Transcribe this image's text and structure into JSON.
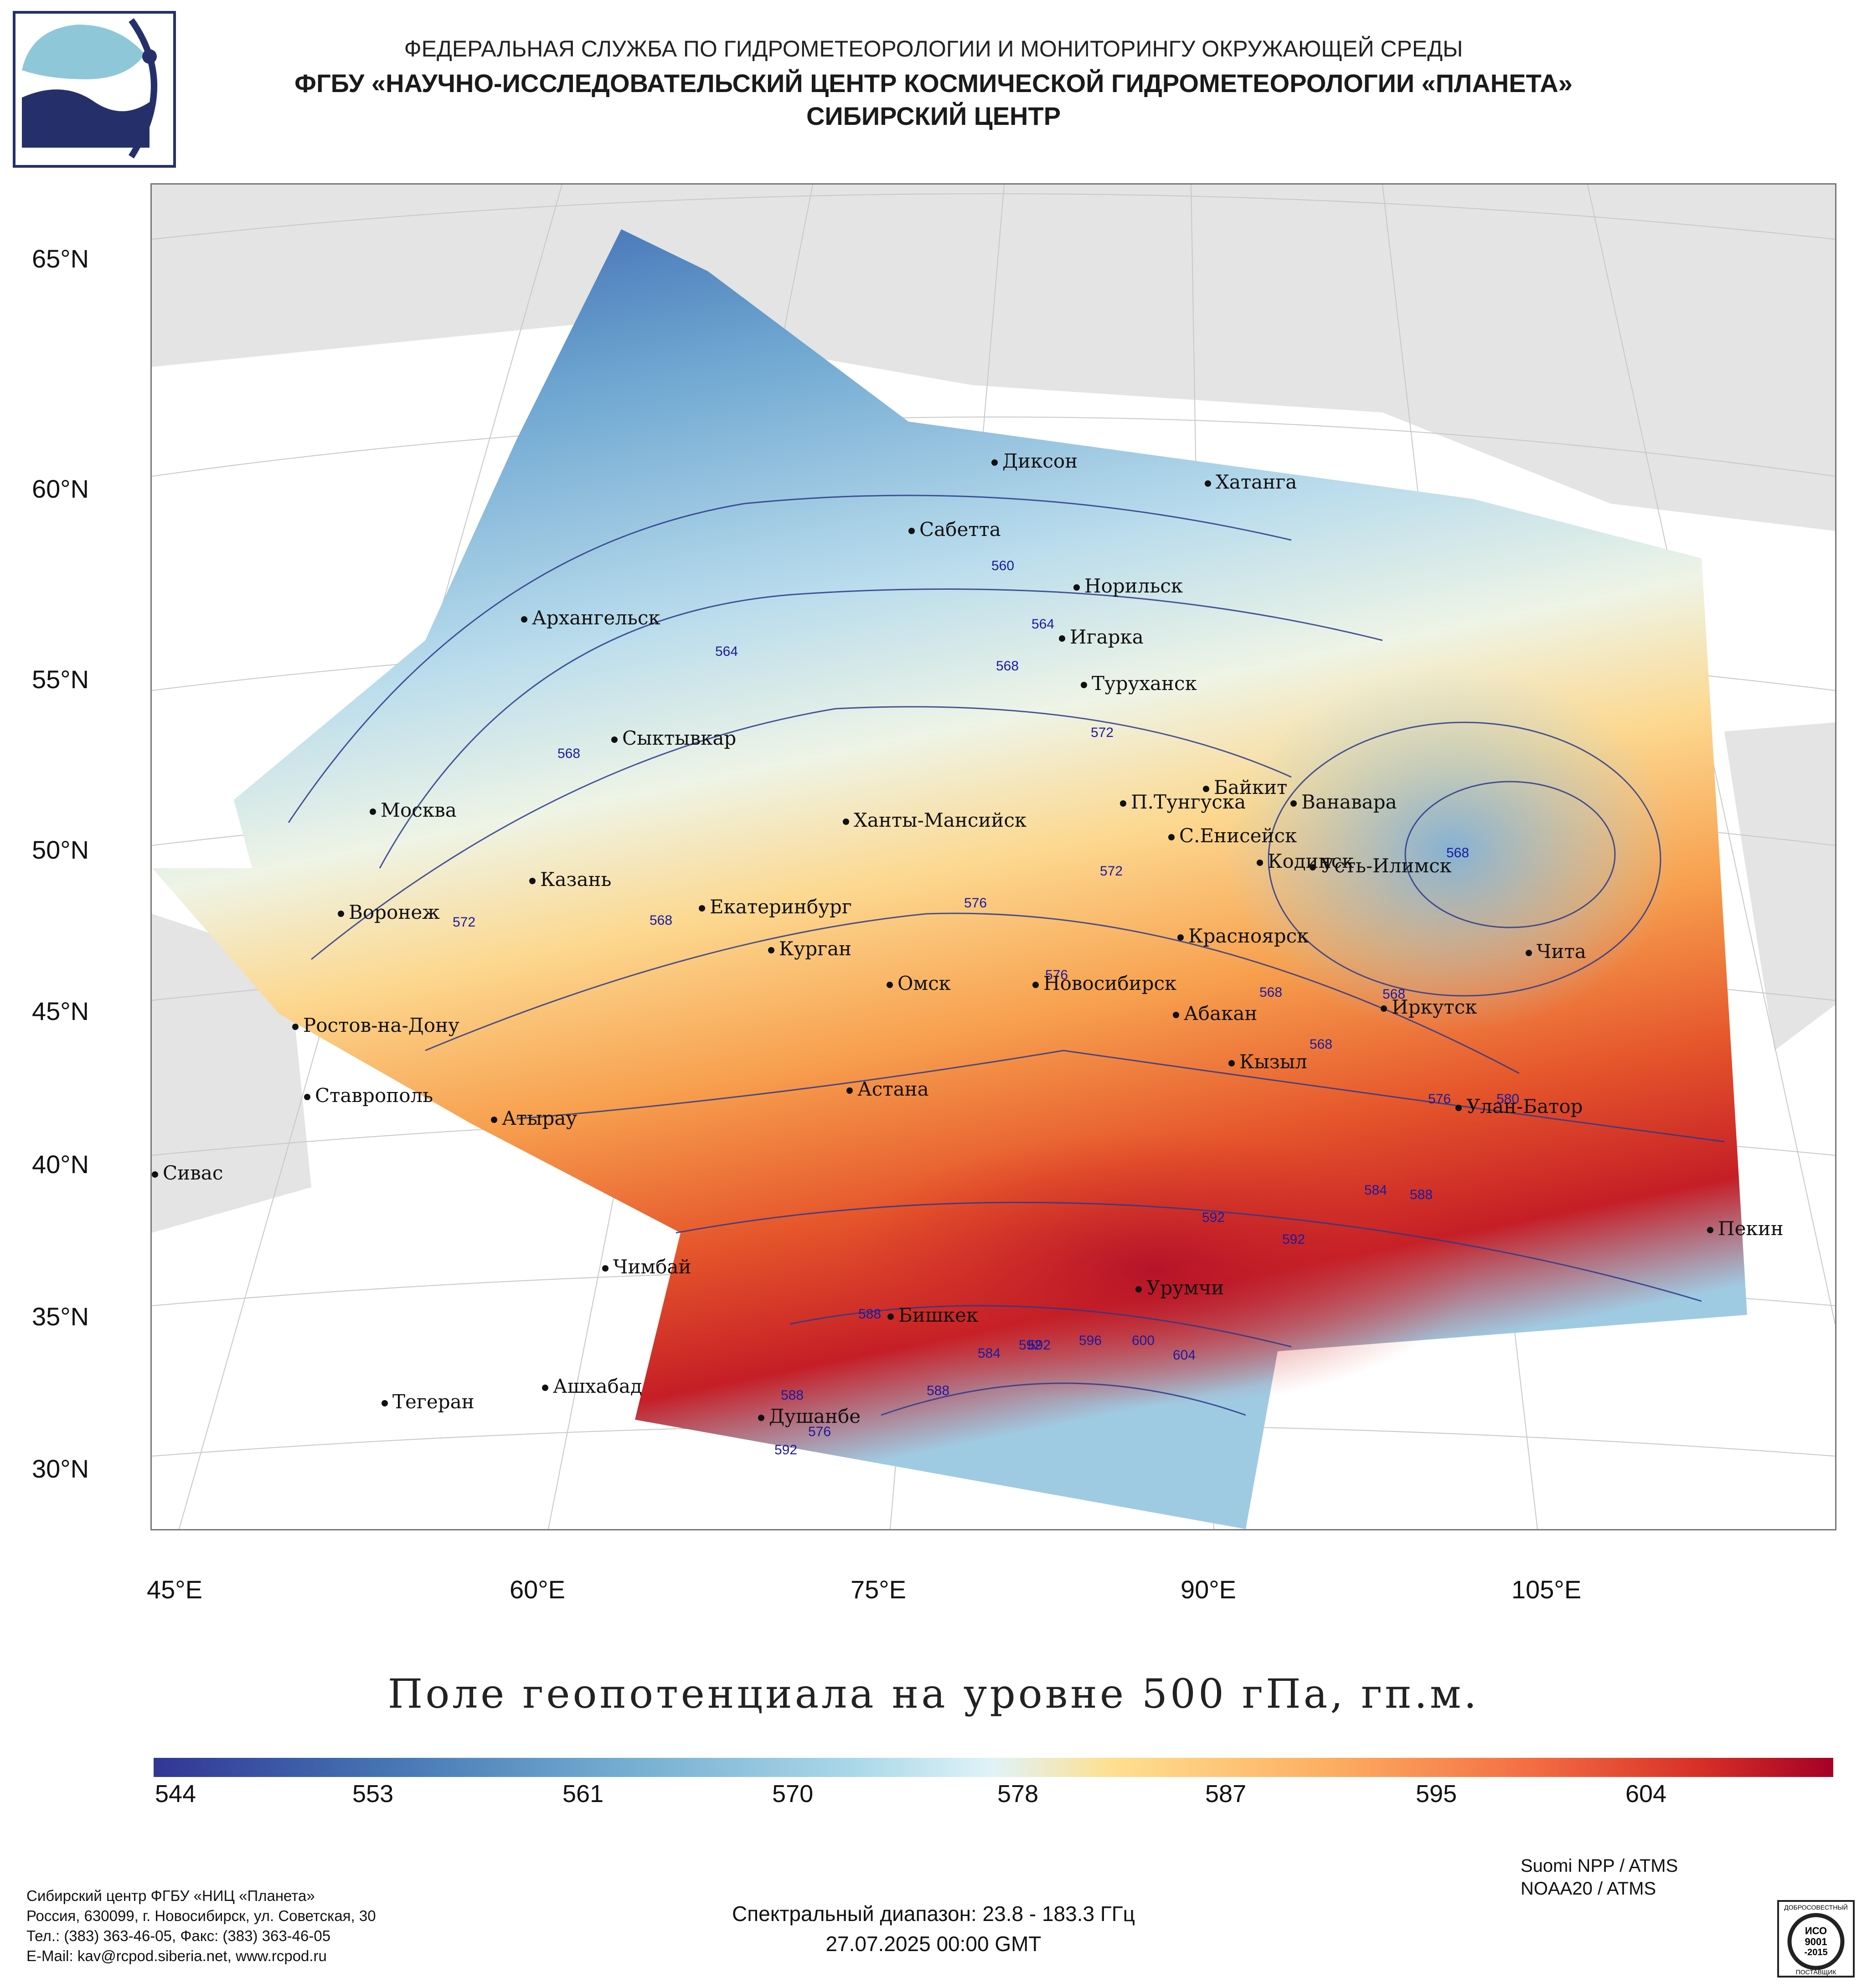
{
  "header": {
    "line1": "ФЕДЕРАЛЬНАЯ СЛУЖБА ПО ГИДРОМЕТЕОРОЛОГИИ И МОНИТОРИНГУ ОКРУЖАЮЩЕЙ СРЕДЫ",
    "line2": "ФГБУ «НАУЧНО-ИССЛЕДОВАТЕЛЬСКИЙ ЦЕНТР КОСМИЧЕСКОЙ ГИДРОМЕТЕОРОЛОГИИ «ПЛАНЕТА»",
    "line3": "СИБИРСКИЙ ЦЕНТР"
  },
  "map": {
    "lat_labels": [
      "65°N",
      "60°N",
      "55°N",
      "50°N",
      "45°N",
      "40°N",
      "35°N",
      "30°N"
    ],
    "lon_labels": [
      "45°E",
      "60°E",
      "75°E",
      "90°E",
      "105°E"
    ],
    "cities": [
      "Диксон",
      "Хатанга",
      "Сабетта",
      "Норильск",
      "Игарка",
      "Архангельск",
      "Туруханск",
      "Сыктывкар",
      "Байкит",
      "П.Тунгуска",
      "Ванавара",
      "Москва",
      "Ханты-Мансийск",
      "С.Енисейск",
      "Казань",
      "Кодинск",
      "Усть-Илимск",
      "Екатеринбург",
      "Воронеж",
      "Курган",
      "Красноярск",
      "Чита",
      "Омск",
      "Новосибирск",
      "Ростов-на-Дону",
      "Абакан",
      "Иркутск",
      "Кызыл",
      "Астана",
      "Ставрополь",
      "Улан-Батор",
      "Атырау",
      "Сивас",
      "Пекин",
      "Чимбай",
      "Урумчи",
      "Бишкек",
      "Ашхабад",
      "Тегеран",
      "Душанбе"
    ],
    "isolines": [
      "560",
      "564",
      "568",
      "564",
      "568",
      "572",
      "568",
      "572",
      "576",
      "576",
      "572",
      "568",
      "568",
      "568",
      "568",
      "576",
      "580",
      "584",
      "588",
      "592",
      "592",
      "592",
      "588",
      "584",
      "592",
      "596",
      "600",
      "604",
      "588",
      "588",
      "576",
      "592"
    ],
    "colors": {
      "land": "#e4e4e4",
      "sea": "#ffffff",
      "contour": "#2a3a8a"
    }
  },
  "legend": {
    "title": "Поле геопотенциала на уровне 500 гПа, гп.м.",
    "ticks": [
      "544",
      "553",
      "561",
      "570",
      "578",
      "587",
      "595",
      "604"
    ],
    "colormap": "RdYlBu reversed"
  },
  "footer": {
    "address": [
      "Сибирский центр ФГБУ «НИЦ «Планета»",
      "Россия, 630099, г. Новосибирск, ул. Советская, 30",
      "Тел.: (383) 363-46-05, Факс: (383) 363-46-05",
      "E-Mail: kav@rcpod.siberia.net, www.rcpod.ru"
    ],
    "spectral": "Спектральный диапазон: 23.8 - 183.3 ГГц",
    "datetime": "27.07.2025 00:00 GMT",
    "satellites": [
      "Suomi NPP / ATMS",
      "NOAA20 / ATMS"
    ],
    "iso_badge": {
      "top": "ДОБРОСОВЕСТНЫЙ",
      "mid1": "ИСО",
      "mid2": "9001",
      "mid3": "-2015",
      "bottom": "ПОСТАВЩИК"
    }
  }
}
